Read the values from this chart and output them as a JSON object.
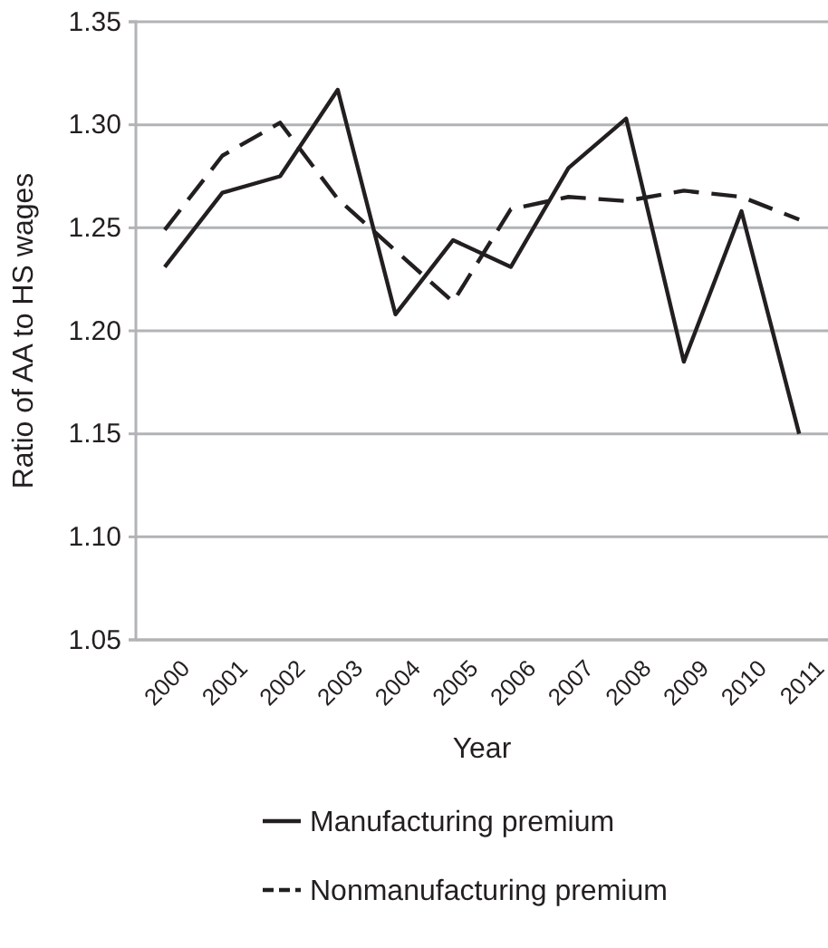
{
  "chart_data": {
    "type": "line",
    "xlabel": "Year",
    "ylabel": "Ratio of AA to HS wages",
    "categories": [
      "2000",
      "2001",
      "2002",
      "2003",
      "2004",
      "2005",
      "2006",
      "2007",
      "2008",
      "2009",
      "2010",
      "2011"
    ],
    "series": [
      {
        "name": "Manufacturing premium",
        "color": "#231f20",
        "line_style": "solid",
        "values": [
          1.231,
          1.267,
          1.275,
          1.317,
          1.208,
          1.244,
          1.231,
          1.279,
          1.303,
          1.185,
          1.258,
          1.15
        ]
      },
      {
        "name": "Nonmanufacturing premium",
        "color": "#231f20",
        "line_style": "dashed",
        "values": [
          1.249,
          1.285,
          1.301,
          1.264,
          1.239,
          1.214,
          1.259,
          1.265,
          1.263,
          1.268,
          1.265,
          1.254
        ]
      }
    ],
    "ylim": [
      1.05,
      1.35
    ],
    "yticks": [
      {
        "value": 1.05,
        "label": "1.05"
      },
      {
        "value": 1.1,
        "label": "1.10"
      },
      {
        "value": 1.15,
        "label": "1.15"
      },
      {
        "value": 1.2,
        "label": "1.20"
      },
      {
        "value": 1.25,
        "label": "1.25"
      },
      {
        "value": 1.3,
        "label": "1.30"
      },
      {
        "value": 1.35,
        "label": "1.35"
      }
    ],
    "grid": "y",
    "legend": "bottom",
    "marker": "none"
  }
}
